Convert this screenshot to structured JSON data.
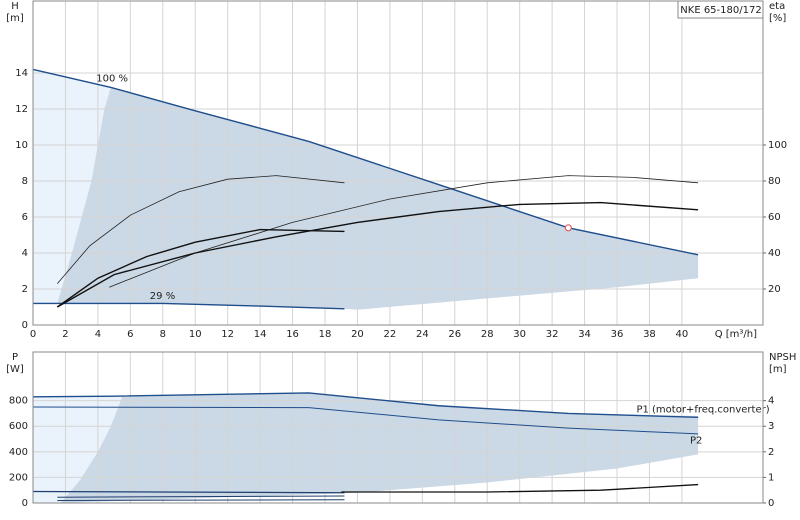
{
  "chart_data": [
    {
      "type": "line",
      "title": "NKE 65-180/172",
      "x_label": "Q [m³/h]",
      "y_label": [
        "H",
        "[m]"
      ],
      "y2_label": [
        "eta",
        "[%]"
      ],
      "xlim": [
        0,
        45
      ],
      "xticks": [
        0,
        2,
        4,
        6,
        8,
        10,
        12,
        14,
        16,
        18,
        20,
        22,
        24,
        26,
        28,
        30,
        32,
        34,
        36,
        38,
        40
      ],
      "ylim": [
        0,
        18
      ],
      "yticks": [
        0,
        2,
        4,
        6,
        8,
        10,
        12,
        14
      ],
      "y2lim": [
        0,
        180
      ],
      "y2ticks": [
        20,
        40,
        60,
        80,
        100
      ],
      "grid": true,
      "areas": [
        {
          "color": "#eaf2fb",
          "x": [
            0,
            4.8,
            4.4,
            3.6,
            2.4,
            1.5,
            0
          ],
          "y": [
            14.2,
            13.2,
            12,
            8,
            4,
            1.2,
            1.2
          ]
        },
        {
          "color": "#cbd8e5",
          "x": [
            4.8,
            10,
            17,
            25,
            33,
            41,
            41,
            36,
            20,
            19.2,
            8,
            1.5,
            2.4,
            3.6,
            4.4
          ],
          "y": [
            13.2,
            11.9,
            10.2,
            7.8,
            5.4,
            3.9,
            2.6,
            2.1,
            0.85,
            0.9,
            1.2,
            1.2,
            4,
            8,
            12
          ]
        }
      ],
      "series": [
        {
          "name": "100 %",
          "color": "#1f4e8c",
          "line_width": 1.4,
          "x": [
            0,
            4.8,
            10,
            17,
            25,
            33,
            41
          ],
          "values": [
            14.2,
            13.2,
            11.9,
            10.2,
            7.8,
            5.4,
            3.9
          ]
        },
        {
          "name": "29 %",
          "color": "#1f4e8c",
          "line_width": 1.4,
          "x": [
            0,
            8,
            14,
            19.2
          ],
          "values": [
            1.2,
            1.2,
            1.05,
            0.9
          ]
        },
        {
          "color": "#222222",
          "line_width": 0.8,
          "axis": "y2",
          "x": [
            4.7,
            10,
            16,
            22,
            28,
            33,
            37,
            41
          ],
          "values": [
            21,
            40,
            57,
            70,
            79,
            83,
            82,
            79
          ]
        },
        {
          "color": "#222222",
          "line_width": 0.8,
          "axis": "y2",
          "x": [
            1.5,
            3.5,
            6,
            9,
            12,
            15,
            19.2
          ],
          "values": [
            23,
            44,
            61,
            74,
            81,
            83,
            79
          ]
        },
        {
          "color": "#111111",
          "line_width": 1.4,
          "axis": "y2",
          "x": [
            1.5,
            4,
            7,
            10,
            14,
            19.2
          ],
          "values": [
            10,
            26,
            38,
            46,
            53,
            52
          ]
        },
        {
          "color": "#111111",
          "line_width": 1.4,
          "axis": "y2",
          "x": [
            1.5,
            5,
            10,
            15,
            20,
            25,
            30,
            35,
            41
          ],
          "values": [
            10,
            28,
            40,
            49,
            57,
            63,
            67,
            68,
            64
          ]
        }
      ],
      "marker": {
        "color": "#e06060",
        "x": 33,
        "y": 5.4
      }
    },
    {
      "type": "line",
      "y_label": [
        "P",
        "[W]"
      ],
      "y2_label": [
        "NPSH",
        "[m]"
      ],
      "xlim": [
        0,
        45
      ],
      "xticks": [
        0,
        2,
        4,
        6,
        8,
        10,
        12,
        14,
        16,
        18,
        20,
        22,
        24,
        26,
        28,
        30,
        32,
        34,
        36,
        38,
        40
      ],
      "ylim": [
        0,
        1180
      ],
      "yticks": [
        0,
        200,
        400,
        600,
        800
      ],
      "y2lim": [
        0,
        5.9
      ],
      "y2ticks": [
        0,
        1,
        2,
        3,
        4
      ],
      "grid": true,
      "areas": [
        {
          "color": "#eaf2fb",
          "x": [
            0,
            5.5,
            4.8,
            4,
            2.9,
            1.7,
            0
          ],
          "y": [
            830,
            830,
            600,
            400,
            180,
            0,
            0
          ]
        },
        {
          "color": "#cbd8e5",
          "x": [
            5.5,
            17,
            25,
            33,
            41,
            41,
            36,
            28,
            20,
            1.7,
            2.9,
            4,
            4.8
          ],
          "y": [
            830,
            860,
            760,
            700,
            680,
            380,
            270,
            160,
            80,
            0,
            180,
            400,
            600
          ]
        }
      ],
      "series": [
        {
          "name": "P1 (motor+freq.converter)",
          "color": "#1f4e8c",
          "line_width": 1.4,
          "x": [
            0,
            5,
            17,
            25,
            33,
            41
          ],
          "values": [
            830,
            835,
            860,
            760,
            700,
            670
          ]
        },
        {
          "name": "P2",
          "color": "#1f4e8c",
          "line_width": 1,
          "x": [
            0,
            17,
            25,
            33,
            41
          ],
          "values": [
            750,
            745,
            650,
            585,
            540
          ]
        },
        {
          "color": "#1f3f6e",
          "line_width": 1.2,
          "x": [
            0,
            19.2
          ],
          "values": [
            90,
            80
          ]
        },
        {
          "color": "#1f3f6e",
          "line_width": 1,
          "x": [
            1.5,
            19.2
          ],
          "values": [
            45,
            55
          ]
        },
        {
          "color": "#1f3f6e",
          "line_width": 1,
          "x": [
            1.5,
            19.2
          ],
          "values": [
            20,
            25
          ]
        },
        {
          "color": "#111111",
          "line_width": 1.3,
          "axis": "y2",
          "x": [
            19,
            28,
            35,
            41
          ],
          "values": [
            0.43,
            0.43,
            0.5,
            0.72
          ]
        }
      ]
    }
  ]
}
